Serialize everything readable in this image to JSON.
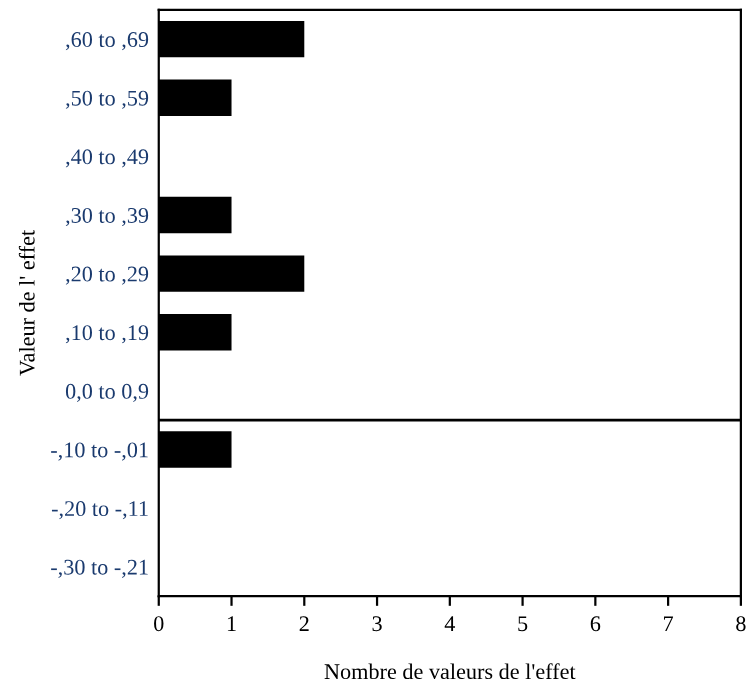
{
  "chart_data": {
    "type": "bar",
    "orientation": "horizontal",
    "xlabel": "Nombre de valeurs de l'effet",
    "ylabel": "Valeur de l' effet",
    "categories": [
      ",60 to ,69",
      ",50 to ,59",
      ",40 to ,49",
      ",30 to ,39",
      ",20 to ,29",
      ",10 to ,19",
      "0,0 to 0,9",
      "-,10 to -,01",
      "-,20 to -,11",
      "-,30 to -,21"
    ],
    "values": [
      2,
      1,
      0,
      1,
      2,
      1,
      0,
      1,
      0,
      0
    ],
    "color": "#000000",
    "xlim": [
      0,
      8
    ],
    "xticks": [
      0,
      1,
      2,
      3,
      4,
      5,
      6,
      7,
      8
    ],
    "grid": false,
    "legend": false
  }
}
